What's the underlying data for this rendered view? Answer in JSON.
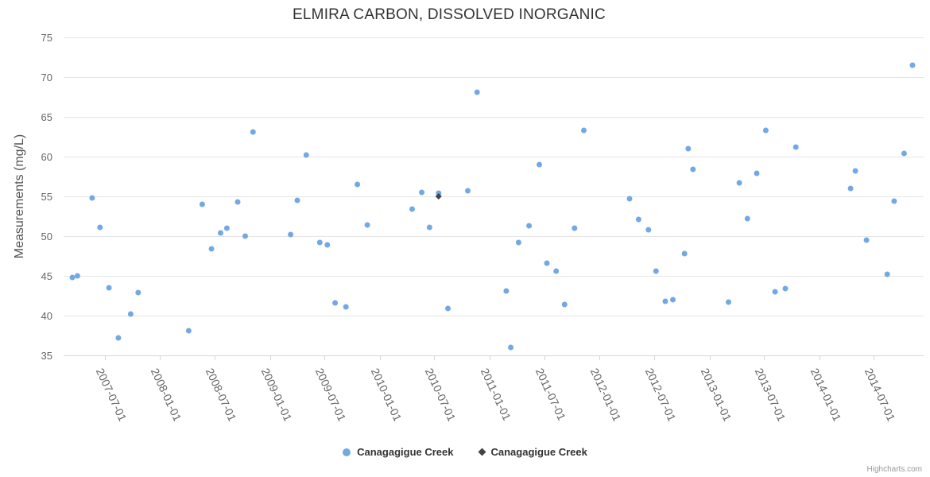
{
  "credits": {
    "label": "Highcharts.com"
  },
  "chart_data": {
    "type": "scatter",
    "title": "ELMIRA CARBON, DISSOLVED INORGANIC",
    "xlabel": "",
    "ylabel": "Measurements (mg/L)",
    "ylim": [
      35,
      75
    ],
    "y_ticks": [
      35,
      40,
      45,
      50,
      55,
      60,
      65,
      70,
      75
    ],
    "x_ticks": [
      "2007-07-01",
      "2008-01-01",
      "2008-07-01",
      "2009-01-01",
      "2009-07-01",
      "2010-01-01",
      "2010-07-01",
      "2011-01-01",
      "2011-07-01",
      "2012-01-01",
      "2012-07-01",
      "2013-01-01",
      "2013-07-01",
      "2014-01-01",
      "2014-07-01"
    ],
    "x_tick_rotation_deg": 65,
    "x_range": [
      "2007-02-14",
      "2014-12-14"
    ],
    "grid": "horizontal-only",
    "legend_position": "bottom-center",
    "colors": {
      "grid": "#e6e6e6",
      "axis": "#ccd6eb",
      "label": "#666666",
      "title": "#333333"
    },
    "series": [
      {
        "name": "Canagagigue Creek",
        "marker": "circle",
        "color": "#72a9e5",
        "points": [
          [
            "2007-03-15",
            44.8
          ],
          [
            "2007-04-01",
            45.0
          ],
          [
            "2007-05-20",
            54.8
          ],
          [
            "2007-06-15",
            51.1
          ],
          [
            "2007-07-15",
            43.5
          ],
          [
            "2007-08-15",
            37.2
          ],
          [
            "2007-09-25",
            40.2
          ],
          [
            "2007-10-20",
            42.9
          ],
          [
            "2008-04-05",
            38.1
          ],
          [
            "2008-05-20",
            54.0
          ],
          [
            "2008-06-20",
            48.4
          ],
          [
            "2008-07-20",
            50.4
          ],
          [
            "2008-08-10",
            51.0
          ],
          [
            "2008-09-15",
            54.3
          ],
          [
            "2008-10-10",
            50.0
          ],
          [
            "2008-11-05",
            63.1
          ],
          [
            "2009-03-10",
            50.2
          ],
          [
            "2009-04-01",
            54.5
          ],
          [
            "2009-05-01",
            60.2
          ],
          [
            "2009-06-15",
            49.2
          ],
          [
            "2009-07-10",
            48.9
          ],
          [
            "2009-08-05",
            41.6
          ],
          [
            "2009-09-10",
            41.1
          ],
          [
            "2009-10-18",
            56.5
          ],
          [
            "2009-11-20",
            51.4
          ],
          [
            "2010-04-18",
            53.4
          ],
          [
            "2010-05-20",
            55.5
          ],
          [
            "2010-06-15",
            51.1
          ],
          [
            "2010-07-15",
            55.4
          ],
          [
            "2010-08-15",
            40.9
          ],
          [
            "2010-10-20",
            55.7
          ],
          [
            "2010-11-20",
            68.1
          ],
          [
            "2011-02-25",
            43.1
          ],
          [
            "2011-03-12",
            36.0
          ],
          [
            "2011-04-07",
            49.2
          ],
          [
            "2011-05-12",
            51.3
          ],
          [
            "2011-06-15",
            59.0
          ],
          [
            "2011-07-10",
            46.6
          ],
          [
            "2011-08-10",
            45.6
          ],
          [
            "2011-09-07",
            41.4
          ],
          [
            "2011-10-10",
            51.0
          ],
          [
            "2011-11-10",
            63.3
          ],
          [
            "2012-04-10",
            54.7
          ],
          [
            "2012-05-10",
            52.1
          ],
          [
            "2012-06-12",
            50.8
          ],
          [
            "2012-07-07",
            45.6
          ],
          [
            "2012-08-07",
            41.8
          ],
          [
            "2012-09-01",
            42.0
          ],
          [
            "2012-10-10",
            47.8
          ],
          [
            "2012-10-22",
            61.0
          ],
          [
            "2012-11-07",
            58.4
          ],
          [
            "2013-03-05",
            41.7
          ],
          [
            "2013-04-10",
            56.7
          ],
          [
            "2013-05-07",
            52.2
          ],
          [
            "2013-06-07",
            57.9
          ],
          [
            "2013-07-07",
            63.3
          ],
          [
            "2013-08-07",
            43.0
          ],
          [
            "2013-09-10",
            43.4
          ],
          [
            "2013-10-15",
            61.2
          ],
          [
            "2014-04-15",
            56.0
          ],
          [
            "2014-05-01",
            58.2
          ],
          [
            "2014-06-07",
            49.5
          ],
          [
            "2014-08-15",
            45.2
          ],
          [
            "2014-09-07",
            54.4
          ],
          [
            "2014-10-10",
            60.4
          ],
          [
            "2014-11-07",
            71.5
          ]
        ]
      },
      {
        "name": "Canagagigue Creek",
        "marker": "diamond",
        "color": "#434348",
        "points": [
          [
            "2010-07-15",
            55.0
          ]
        ]
      }
    ]
  }
}
